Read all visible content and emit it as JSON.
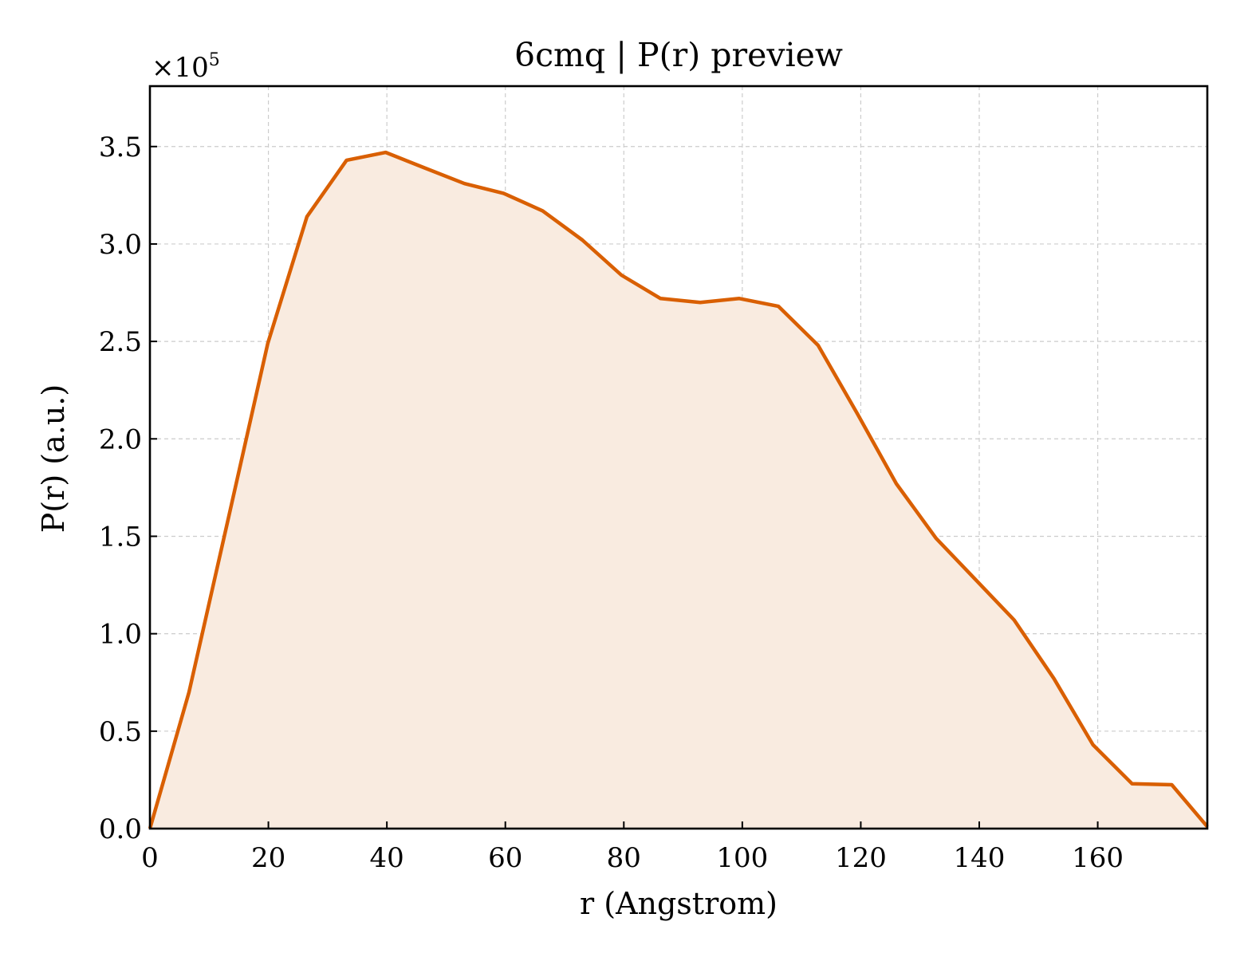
{
  "chart_data": {
    "type": "area",
    "title": "6cmq | P(r) preview",
    "xlabel": "r (Angstrom)",
    "ylabel": "P(r) (a.u.)",
    "y_multiplier_base": "×10",
    "y_multiplier_exp": "5",
    "y_scale": 100000,
    "xlim": [
      0,
      178.5
    ],
    "ylim": [
      0,
      3.81
    ],
    "x_ticks": [
      0,
      20,
      40,
      60,
      80,
      100,
      120,
      140,
      160
    ],
    "x_tick_labels": [
      "0",
      "20",
      "40",
      "60",
      "80",
      "100",
      "120",
      "140",
      "160"
    ],
    "y_ticks": [
      0.0,
      0.5,
      1.0,
      1.5,
      2.0,
      2.5,
      3.0,
      3.5
    ],
    "y_tick_labels": [
      "0.0",
      "0.5",
      "1.0",
      "1.5",
      "2.0",
      "2.5",
      "3.0",
      "3.5"
    ],
    "grid": true,
    "line_color": "#d95f02",
    "fill_color": "#f9ebe0",
    "series": [
      {
        "x": [
          0,
          6.6,
          13.3,
          19.9,
          26.5,
          33.2,
          39.8,
          46.4,
          53.1,
          59.7,
          66.3,
          73.0,
          79.6,
          86.2,
          92.9,
          99.5,
          106.1,
          112.8,
          119.4,
          126.0,
          132.7,
          139.3,
          145.9,
          152.6,
          159.2,
          165.8,
          172.5,
          178.5
        ],
        "y": [
          0.0,
          0.7,
          1.6,
          2.49,
          3.14,
          3.43,
          3.47,
          3.39,
          3.31,
          3.26,
          3.17,
          3.02,
          2.84,
          2.72,
          2.7,
          2.72,
          2.68,
          2.48,
          2.13,
          1.77,
          1.49,
          1.28,
          1.07,
          0.77,
          0.43,
          0.23,
          0.225,
          0.01
        ]
      }
    ]
  }
}
